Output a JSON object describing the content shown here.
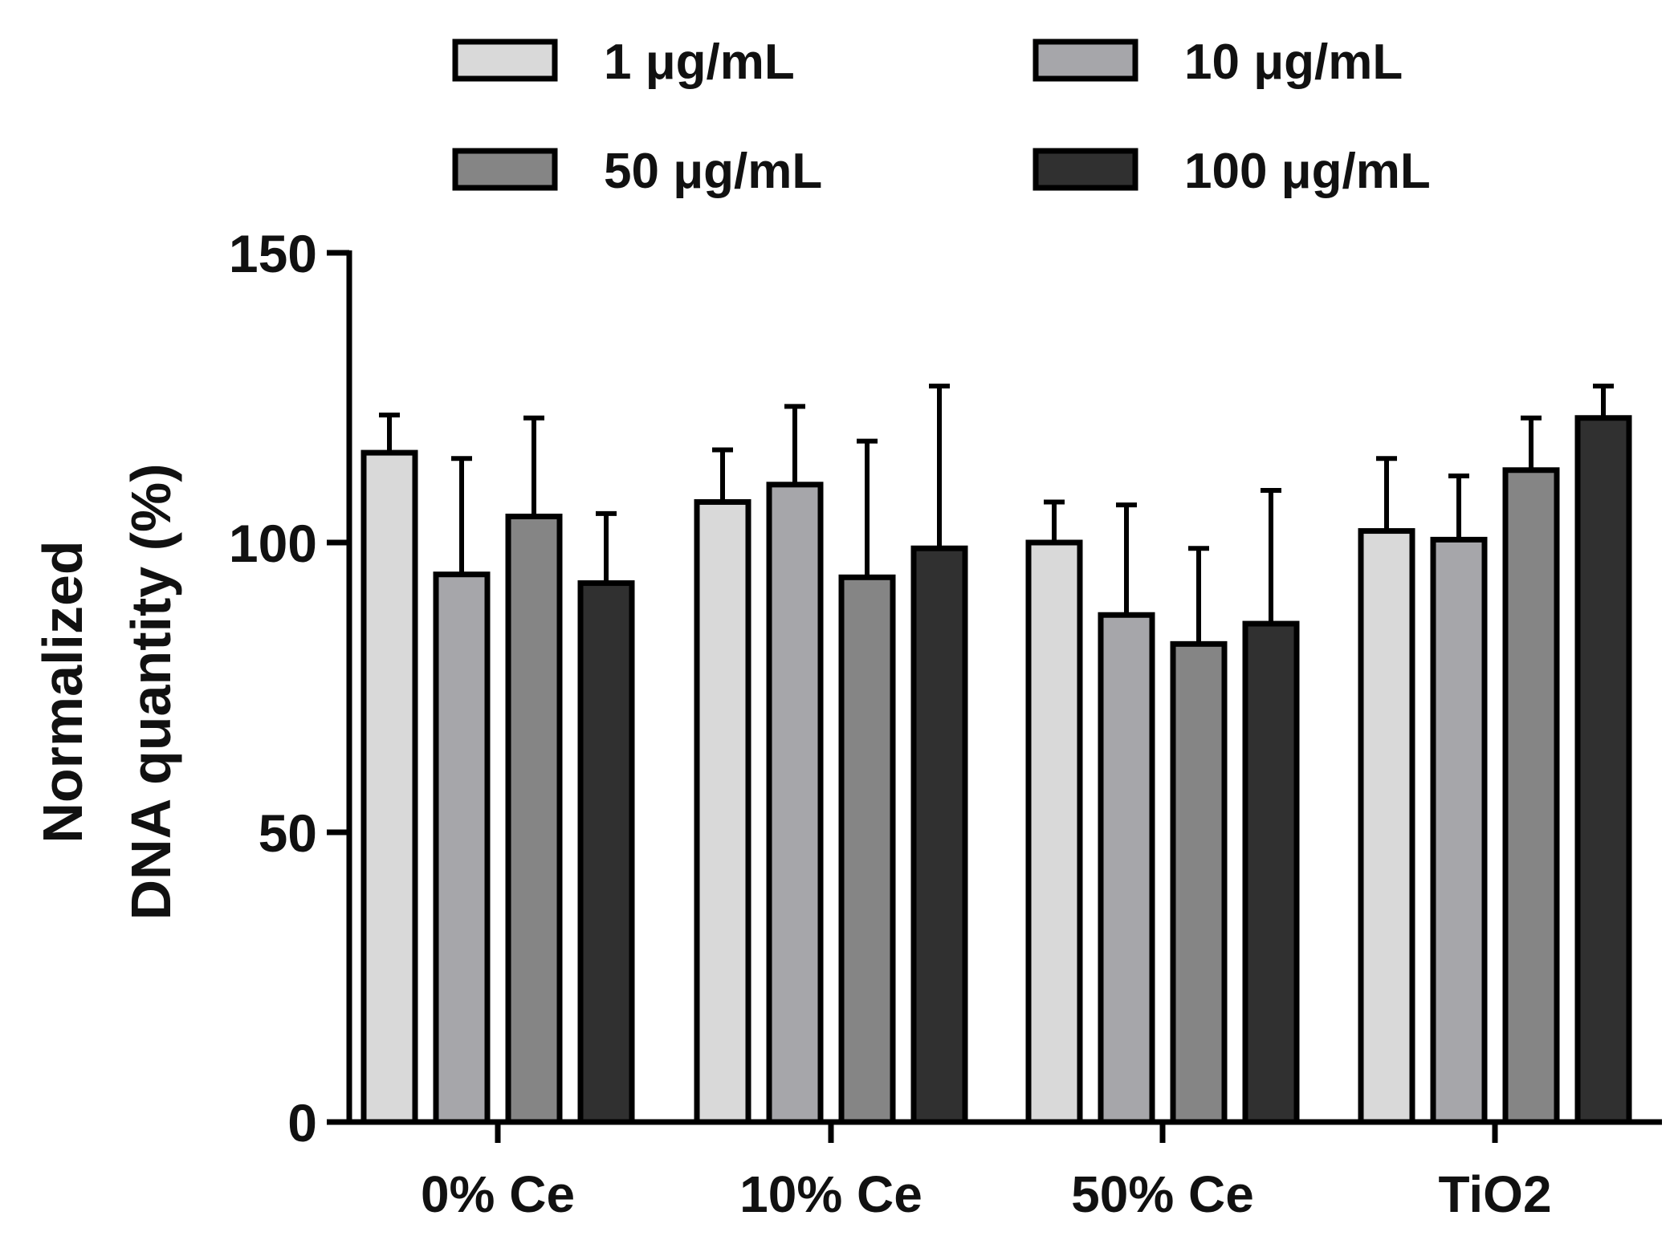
{
  "chart_data": {
    "type": "bar",
    "title": "",
    "xlabel": "",
    "ylabel_lines": [
      "Normalized",
      "DNA quantity (%)"
    ],
    "categories": [
      "0% Ce",
      "10% Ce",
      "50% Ce",
      "TiO2"
    ],
    "ylim": [
      0,
      150
    ],
    "yticks": [
      0,
      50,
      100,
      150
    ],
    "grid": false,
    "legend_position": "top",
    "series": [
      {
        "name": "1 μg/mL",
        "color": "#d9d9d9",
        "values": [
          115.5,
          107.0,
          100.0,
          102.0
        ],
        "errors": [
          6.5,
          9.0,
          7.0,
          12.5
        ]
      },
      {
        "name": "10 μg/mL",
        "color": "#a6a6aa",
        "values": [
          94.5,
          110.0,
          87.5,
          100.5
        ],
        "errors": [
          20.0,
          13.5,
          19.0,
          11.0
        ]
      },
      {
        "name": "50 μg/mL",
        "color": "#858585",
        "values": [
          104.5,
          94.0,
          82.5,
          112.5
        ],
        "errors": [
          17.0,
          23.5,
          16.5,
          9.0
        ]
      },
      {
        "name": "100 μg/mL",
        "color": "#303030",
        "values": [
          93.0,
          99.0,
          86.0,
          121.5
        ],
        "errors": [
          12.0,
          28.0,
          23.0,
          5.5
        ]
      }
    ]
  }
}
